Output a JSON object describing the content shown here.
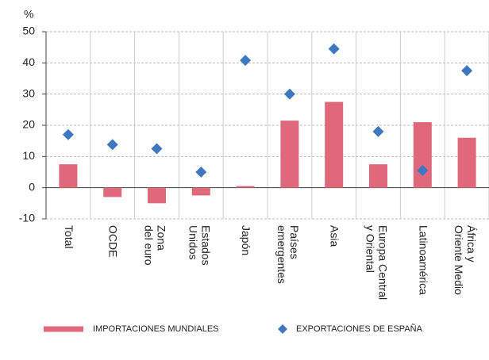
{
  "chart_data": {
    "type": "bar",
    "y_label": "%",
    "categories": [
      "Total",
      "OCDE",
      "Zona\ndel euro",
      "Estados\nUnidos",
      "Japón",
      "Países\nemergentes",
      "Asia",
      "Europa Central\ny Oriental",
      "Latinoamérica",
      "África y\nOriente Medio"
    ],
    "series": [
      {
        "name": "IMPORTACIONES MUNDIALES",
        "type": "bar",
        "color": "#e0687b",
        "values": [
          7.5,
          -3,
          -5,
          -2.5,
          0.5,
          21.5,
          27.5,
          7.5,
          21,
          16
        ]
      },
      {
        "name": "EXPORTACIONES DE ESPAÑA",
        "type": "scatter",
        "marker": "diamond",
        "color": "#3d78c0",
        "values": [
          17,
          13.8,
          12.5,
          5,
          40.8,
          30,
          44.5,
          18,
          5.5,
          37.5
        ]
      }
    ],
    "ylim": [
      -10,
      50
    ],
    "yticks": [
      -10,
      0,
      10,
      20,
      30,
      40,
      50
    ],
    "grid": true,
    "legend": "bottom"
  }
}
